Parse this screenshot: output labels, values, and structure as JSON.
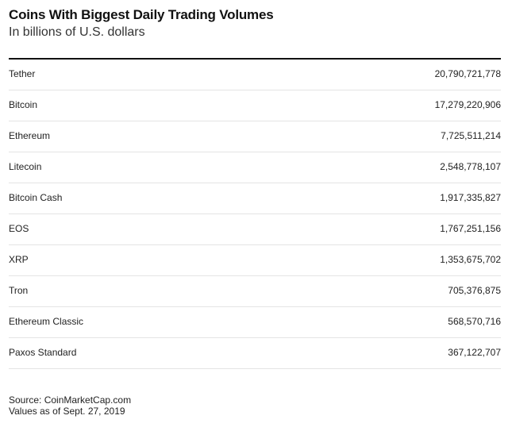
{
  "chart_data": {
    "type": "table",
    "title": "Coins With Biggest Daily Trading Volumes",
    "subtitle": "In billions of U.S. dollars",
    "rows": [
      {
        "name": "Tether",
        "value": "20,790,721,778"
      },
      {
        "name": "Bitcoin",
        "value": "17,279,220,906"
      },
      {
        "name": "Ethereum",
        "value": "7,725,511,214"
      },
      {
        "name": "Litecoin",
        "value": "2,548,778,107"
      },
      {
        "name": "Bitcoin Cash",
        "value": "1,917,335,827"
      },
      {
        "name": "EOS",
        "value": "1,767,251,156"
      },
      {
        "name": "XRP",
        "value": "1,353,675,702"
      },
      {
        "name": "Tron",
        "value": "705,376,875"
      },
      {
        "name": "Ethereum Classic",
        "value": "568,570,716"
      },
      {
        "name": "Paxos Standard",
        "value": "367,122,707"
      }
    ],
    "source": "Source: CoinMarketCap.com",
    "note": "Values as of Sept. 27, 2019"
  }
}
